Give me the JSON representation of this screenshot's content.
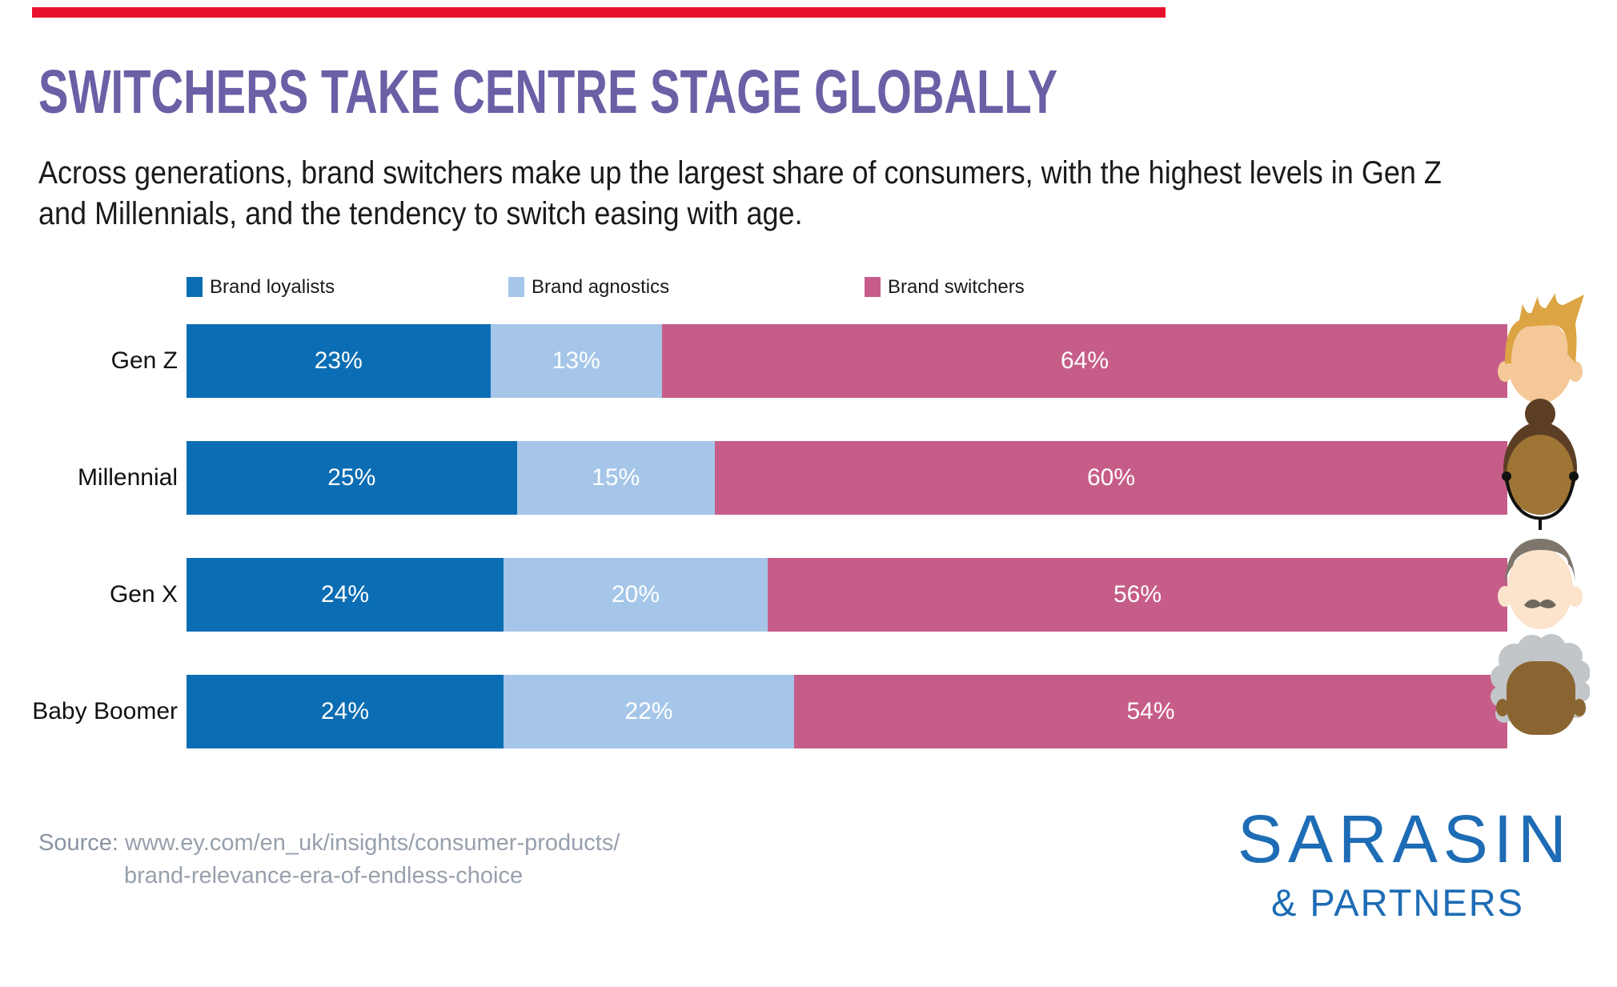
{
  "title": "SWITCHERS TAKE CENTRE STAGE GLOBALLY",
  "subtitle_lines": [
    "Across generations, brand switchers make up the largest share of consumers, with the highest levels in Gen Z",
    "and Millennials, and the tendency to switch easing with age."
  ],
  "chart_data": {
    "type": "bar",
    "orientation": "horizontal",
    "stacked": true,
    "unit": "%",
    "categories": [
      "Gen Z",
      "Millennial",
      "Gen X",
      "Baby Boomer"
    ],
    "series": [
      {
        "name": "Brand loyalists",
        "color": "#0b6db3",
        "values": [
          23,
          25,
          24,
          24
        ]
      },
      {
        "name": "Brand agnostics",
        "color": "#a5c6e8",
        "values": [
          13,
          15,
          20,
          22
        ]
      },
      {
        "name": "Brand switchers",
        "color": "#c65d88",
        "values": [
          64,
          60,
          56,
          54
        ]
      }
    ],
    "value_label_format": "inside-white-percent",
    "legend_position": "top",
    "axis": "none",
    "grid": false,
    "xlim": [
      0,
      100
    ]
  },
  "avatars": [
    {
      "name": "gen-z-avatar",
      "skin": "#f4c897",
      "hair": "#dca443"
    },
    {
      "name": "millennial-avatar",
      "skin": "#9f7535",
      "hair": "#5b3e24",
      "accessory": "#111111"
    },
    {
      "name": "gen-x-avatar",
      "skin": "#fbe3cc",
      "hair": "#7e766c",
      "accessory": "#6e675e"
    },
    {
      "name": "baby-boomer-avatar",
      "skin": "#8a6531",
      "hair": "#c3c6c9"
    }
  ],
  "source": {
    "prefix": "Source:",
    "url_line1": "www.ey.com/en_uk/insights/consumer-products/",
    "url_line2": "brand-relevance-era-of-endless-choice"
  },
  "logo": {
    "name": "SARASIN",
    "sub": "& PARTNERS",
    "color": "#1d6cb5"
  },
  "colors": {
    "accent_bar": "#e8112d",
    "title": "#6b5fa6",
    "text": "#1a1a1a",
    "source_text": "#97a0ac",
    "source_prefix": "#8a94a2"
  }
}
